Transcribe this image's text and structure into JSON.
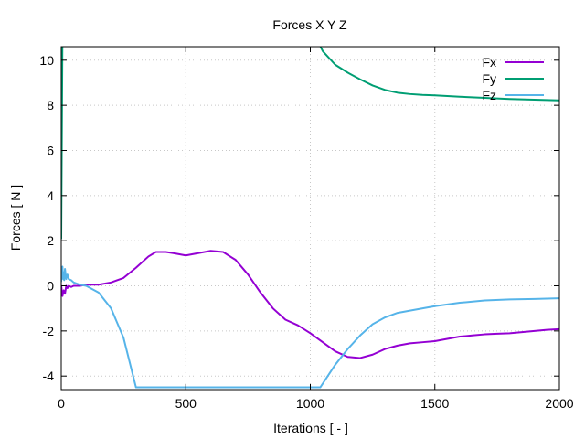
{
  "chart_data": {
    "type": "line",
    "title": "Forces X Y Z",
    "xlabel": "Iterations [ - ]",
    "ylabel": "Forces [ N ]",
    "xlim": [
      0,
      2000
    ],
    "ylim": [
      -4.6,
      10.6
    ],
    "xticks": [
      0,
      500,
      1000,
      1500,
      2000
    ],
    "yticks": [
      -4,
      -2,
      0,
      2,
      4,
      6,
      8,
      10
    ],
    "grid": true,
    "legend": "top-right",
    "series": [
      {
        "name": "Fx",
        "color": "#9400d3",
        "x": [
          0,
          5,
          10,
          15,
          20,
          25,
          30,
          40,
          50,
          75,
          100,
          150,
          200,
          250,
          300,
          350,
          380,
          420,
          450,
          500,
          550,
          600,
          650,
          700,
          750,
          800,
          850,
          900,
          950,
          1000,
          1050,
          1100,
          1150,
          1200,
          1250,
          1300,
          1350,
          1400,
          1450,
          1500,
          1550,
          1600,
          1650,
          1700,
          1750,
          1800,
          1850,
          1900,
          1950,
          2000
        ],
        "y": [
          0,
          -0.45,
          -0.2,
          -0.35,
          0,
          -0.1,
          0,
          -0.05,
          0,
          0,
          0.05,
          0.05,
          0.15,
          0.35,
          0.8,
          1.3,
          1.5,
          1.5,
          1.45,
          1.35,
          1.45,
          1.55,
          1.5,
          1.15,
          0.5,
          -0.3,
          -1.0,
          -1.5,
          -1.75,
          -2.1,
          -2.5,
          -2.9,
          -3.15,
          -3.2,
          -3.05,
          -2.8,
          -2.65,
          -2.55,
          -2.5,
          -2.45,
          -2.35,
          -2.25,
          -2.2,
          -2.15,
          -2.12,
          -2.1,
          -2.05,
          -2.0,
          -1.95,
          -1.92
        ]
      },
      {
        "name": "Fy",
        "color": "#009e73",
        "x": [
          0,
          5,
          1000,
          1050,
          1100,
          1150,
          1200,
          1250,
          1300,
          1350,
          1400,
          1450,
          1500,
          1600,
          1700,
          1800,
          1900,
          2000
        ],
        "y": [
          2.1,
          11.5,
          11.5,
          10.4,
          9.8,
          9.45,
          9.15,
          8.88,
          8.68,
          8.56,
          8.5,
          8.46,
          8.44,
          8.38,
          8.33,
          8.28,
          8.25,
          8.22
        ],
        "note": "continues above the top of the plotted range"
      },
      {
        "name": "Fz",
        "color": "#56b4e9",
        "x": [
          0,
          5,
          8,
          10,
          12,
          15,
          20,
          25,
          30,
          40,
          50,
          75,
          100,
          150,
          200,
          250,
          300,
          1040,
          1100,
          1150,
          1200,
          1250,
          1300,
          1350,
          1400,
          1500,
          1600,
          1700,
          1800,
          1900,
          2000
        ],
        "y": [
          0.2,
          0.85,
          0.3,
          0.6,
          0.25,
          0.75,
          0.3,
          0.5,
          0.3,
          0.25,
          0.15,
          0.05,
          0.0,
          -0.3,
          -1.0,
          -2.3,
          -4.5,
          -4.5,
          -3.5,
          -2.8,
          -2.2,
          -1.7,
          -1.4,
          -1.2,
          -1.1,
          -0.9,
          -0.75,
          -0.65,
          -0.6,
          -0.58,
          -0.55
        ],
        "note": "drops below the bottom of the plotted range between roughly 300 and 1040"
      }
    ]
  }
}
